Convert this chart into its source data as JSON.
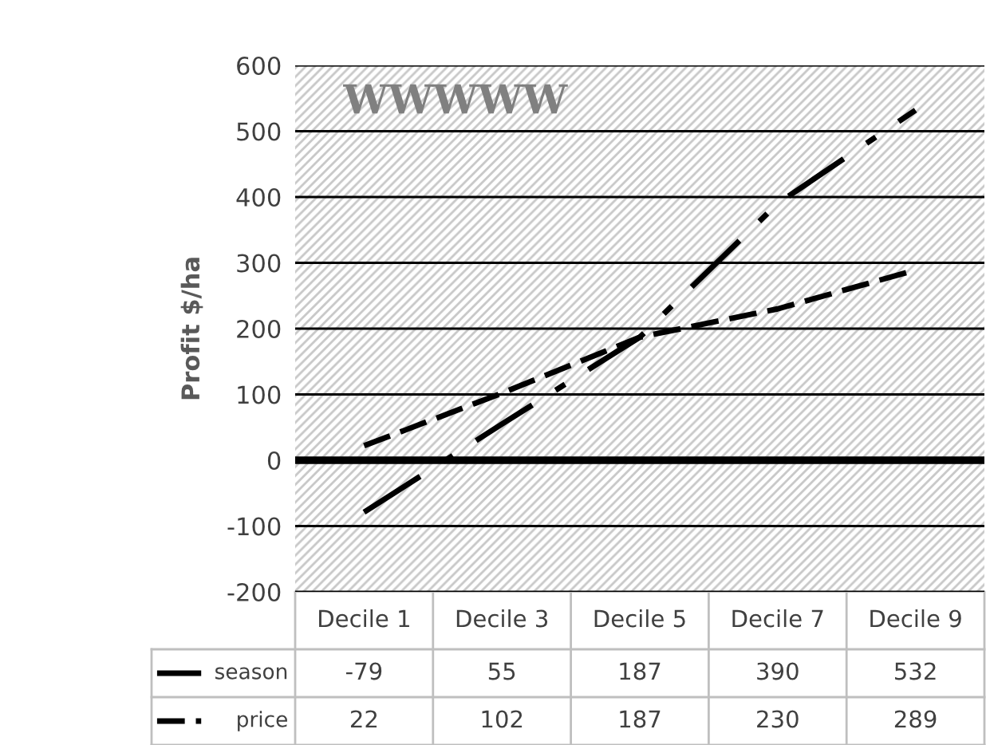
{
  "chart_data": {
    "type": "line",
    "ylabel": "Profit $/ha",
    "annotations": [
      "WWWWW"
    ],
    "categories": [
      "Decile 1",
      "Decile 3",
      "Decile 5",
      "Decile 7",
      "Decile 9"
    ],
    "series": [
      {
        "name": "season",
        "color": "#000000",
        "line_style": "dashdot",
        "values": [
          -79,
          55,
          187,
          390,
          532
        ]
      },
      {
        "name": "price",
        "color": "#000000",
        "line_style": "dashed",
        "values": [
          22,
          102,
          187,
          230,
          289
        ]
      }
    ],
    "ylim": [
      -200,
      600
    ],
    "yticks": [
      -200,
      -100,
      0,
      100,
      200,
      300,
      400,
      500,
      600
    ],
    "ref_lines": [
      {
        "axis": "y",
        "value": 0,
        "color": "#000000"
      }
    ],
    "grid": "y",
    "legend": "bottom",
    "data_labels": true,
    "marker": "none"
  }
}
